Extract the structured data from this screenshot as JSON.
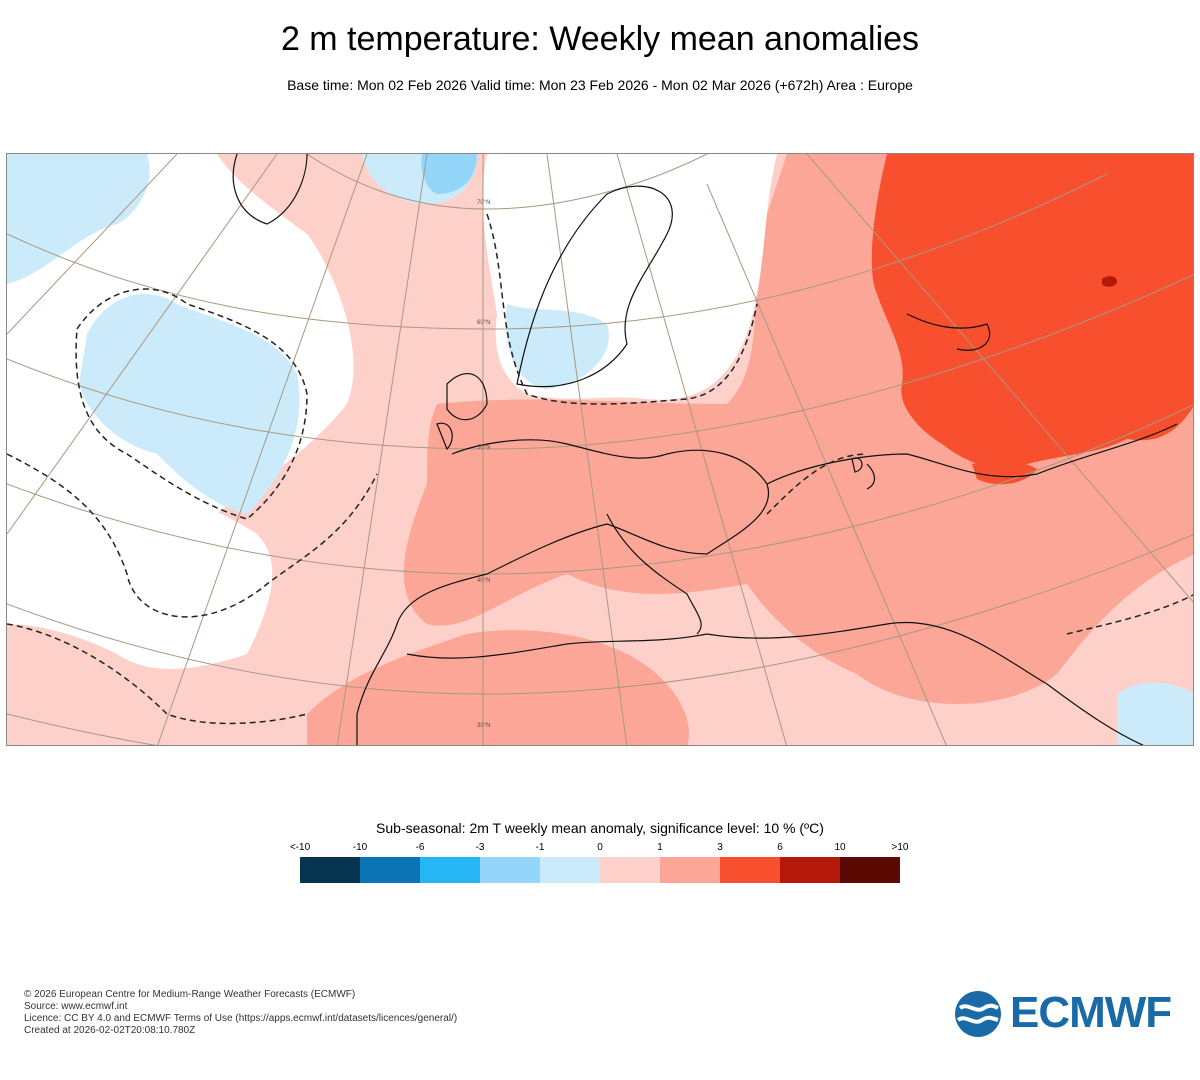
{
  "header": {
    "title": "2 m temperature: Weekly mean anomalies",
    "subtitle": "Base time: Mon 02 Feb 2026 Valid time: Mon 23 Feb 2026 - Mon 02 Mar 2026 (+672h) Area : Europe"
  },
  "map": {
    "area": "Europe",
    "latitude_labels": [
      "70°N",
      "60°N",
      "50°N",
      "40°N",
      "30°N"
    ],
    "overlays": [
      "coastlines",
      "country-borders",
      "graticule",
      "significance-contour-dashed"
    ]
  },
  "legend": {
    "title": "Sub-seasonal: 2m T weekly mean anomaly, significance level: 10 % (ºC)",
    "ticks": [
      "<-10",
      "-10",
      "-6",
      "-3",
      "-1",
      "0",
      "1",
      "3",
      "6",
      "10",
      ">10"
    ],
    "colors": [
      "#06344f",
      "#0a74b4",
      "#27b6f5",
      "#93d6fa",
      "#cbebfb",
      "#fed0ca",
      "#fba696",
      "#f8502f",
      "#b5190a",
      "#5a0a03"
    ]
  },
  "footer": {
    "line1": "© 2026 European Centre for Medium-Range Weather Forecasts (ECMWF)",
    "line2": "Source: www.ecmwf.int",
    "line3": "Licence: CC BY 4.0 and ECMWF Terms of Use (https://apps.ecmwf.int/datasets/licences/general/)",
    "line4": "Created at 2026-02-02T20:08:10.780Z"
  },
  "logo": {
    "text": "ECMWF",
    "color": "#1a6aa8"
  }
}
